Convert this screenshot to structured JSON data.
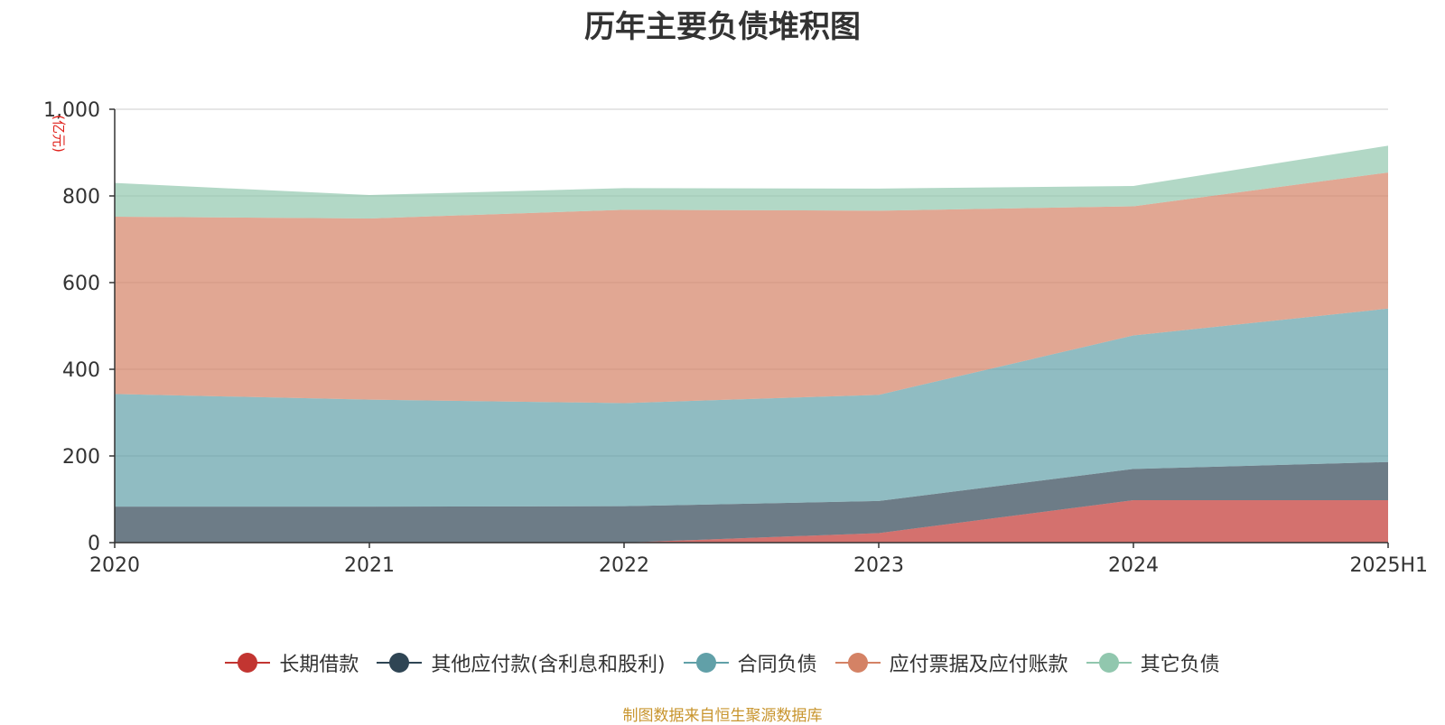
{
  "chart_data": {
    "type": "area",
    "stacked": true,
    "title": "历年主要负债堆积图",
    "ylabel": "(亿元)",
    "xlabel": "",
    "categories": [
      "2020",
      "2021",
      "2022",
      "2023",
      "2024",
      "2025H1"
    ],
    "ylim": [
      0,
      1000
    ],
    "yticks": [
      0,
      200,
      400,
      600,
      800,
      1000
    ],
    "ytick_labels": [
      "0",
      "200",
      "400",
      "600",
      "800",
      "1,000"
    ],
    "grid": true,
    "legend_position": "bottom",
    "series": [
      {
        "name": "长期借款",
        "color": "#c23531",
        "values": [
          0,
          0,
          0,
          22,
          98,
          98
        ]
      },
      {
        "name": "其他应付款(含利息和股利)",
        "color": "#2f4554",
        "values": [
          83,
          83,
          84,
          74,
          72,
          88
        ]
      },
      {
        "name": "合同负债",
        "color": "#61a0a8",
        "values": [
          260,
          247,
          238,
          245,
          308,
          354
        ]
      },
      {
        "name": "应付票据及应付账款",
        "color": "#d48265",
        "values": [
          409,
          418,
          446,
          425,
          298,
          314
        ]
      },
      {
        "name": "其它负债",
        "color": "#91c7ae",
        "values": [
          78,
          54,
          50,
          51,
          47,
          62
        ]
      }
    ]
  },
  "source_note": "制图数据来自恒生聚源数据库"
}
